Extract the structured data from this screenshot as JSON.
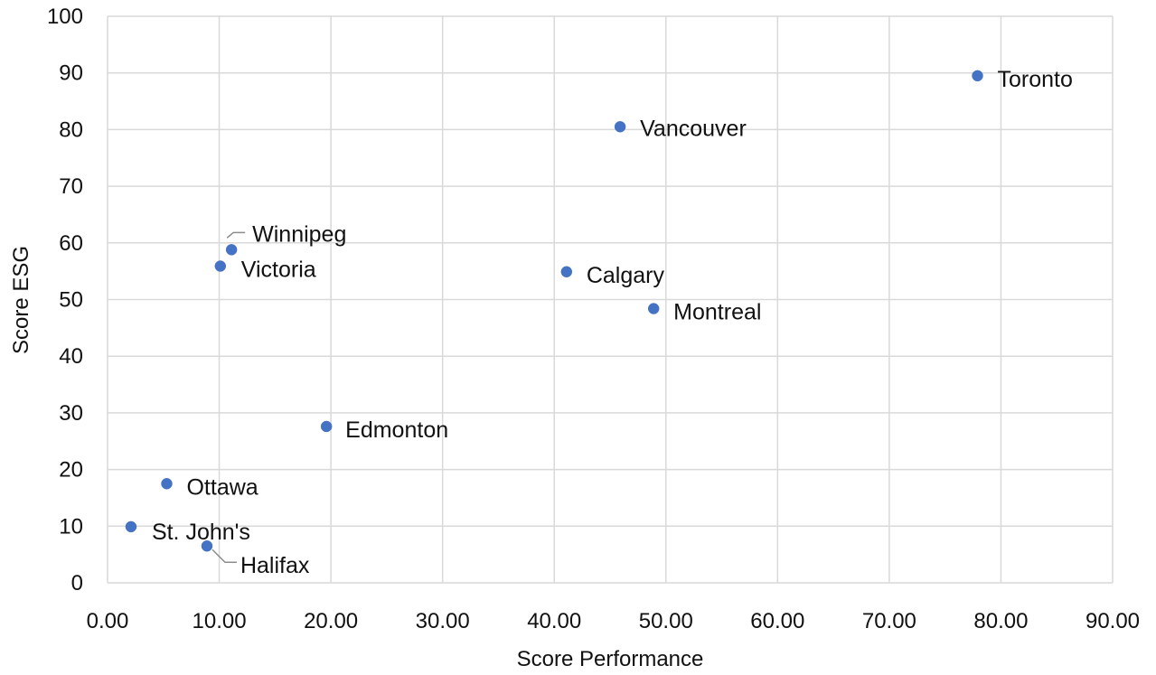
{
  "chart_data": {
    "type": "scatter",
    "xlabel": "Score Performance",
    "ylabel": "Score ESG",
    "xlim": [
      0,
      90
    ],
    "ylim": [
      0,
      100
    ],
    "x_ticks": [
      "0.00",
      "10.00",
      "20.00",
      "30.00",
      "40.00",
      "50.00",
      "60.00",
      "70.00",
      "80.00",
      "90.00"
    ],
    "y_ticks": [
      "0",
      "10",
      "20",
      "30",
      "40",
      "50",
      "60",
      "70",
      "80",
      "90",
      "100"
    ],
    "grid": true,
    "marker_color": "#4472c4",
    "grid_color": "#d9d9d9",
    "points": [
      {
        "label": "Toronto",
        "x": 77.9,
        "y": 89.5
      },
      {
        "label": "Vancouver",
        "x": 45.9,
        "y": 80.5
      },
      {
        "label": "Winnipeg",
        "x": 11.1,
        "y": 58.8
      },
      {
        "label": "Victoria",
        "x": 10.1,
        "y": 55.9
      },
      {
        "label": "Calgary",
        "x": 41.1,
        "y": 54.9
      },
      {
        "label": "Montreal",
        "x": 48.9,
        "y": 48.4
      },
      {
        "label": "Edmonton",
        "x": 19.6,
        "y": 27.6
      },
      {
        "label": "Ottawa",
        "x": 5.3,
        "y": 17.5
      },
      {
        "label": "St. John's",
        "x": 2.1,
        "y": 9.9
      },
      {
        "label": "Halifax",
        "x": 8.9,
        "y": 6.5
      }
    ]
  }
}
